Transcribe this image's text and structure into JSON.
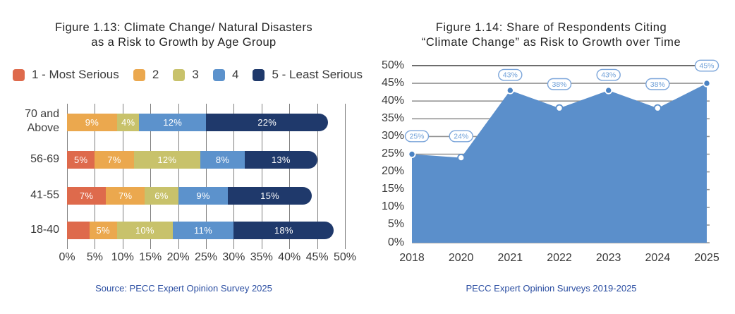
{
  "colors": {
    "serious_1": "#DE6A4C",
    "serious_2": "#EBA84E",
    "serious_3": "#C8C26B",
    "serious_4": "#5C92CC",
    "serious_5": "#1F396B",
    "area_fill": "#5B8FCB",
    "marker_filled": "#4B83C3",
    "marker_open_stroke": "#5B8FCB",
    "bubble_stroke": "#7BA5DA",
    "bubble_text": "#6FA0D8",
    "gridline": "#949494",
    "gridline_dark": "#3D3D3D",
    "footer_blue": "#2B4EA2"
  },
  "left_chart": {
    "title_lines": [
      "Figure 1.13: Climate Change/ Natural Disasters",
      "as a Risk to Growth by Age Group"
    ],
    "legend": [
      {
        "label": "1 - Most Serious",
        "color_key": "serious_1"
      },
      {
        "label": "2",
        "color_key": "serious_2"
      },
      {
        "label": "3",
        "color_key": "serious_3"
      },
      {
        "label": "4",
        "color_key": "serious_4"
      },
      {
        "label": "5 - Least Serious",
        "color_key": "serious_5"
      }
    ],
    "x_ticks": [
      "0%",
      "5%",
      "10%",
      "15%",
      "20%",
      "25%",
      "30%",
      "35%",
      "40%",
      "45%",
      "50%"
    ],
    "x_max": 50,
    "rows": [
      {
        "label_lines": [
          "70 and",
          "Above"
        ],
        "segments": [
          {
            "color_key": "serious_2",
            "value": 9,
            "label": "9%"
          },
          {
            "color_key": "serious_3",
            "value": 4,
            "label": "4%"
          },
          {
            "color_key": "serious_4",
            "value": 12,
            "label": "12%"
          },
          {
            "color_key": "serious_5",
            "value": 22,
            "label": "22%"
          }
        ]
      },
      {
        "label_lines": [
          "56-69"
        ],
        "segments": [
          {
            "color_key": "serious_1",
            "value": 5,
            "label": "5%"
          },
          {
            "color_key": "serious_2",
            "value": 7,
            "label": "7%"
          },
          {
            "color_key": "serious_3",
            "value": 12,
            "label": "12%"
          },
          {
            "color_key": "serious_4",
            "value": 8,
            "label": "8%"
          },
          {
            "color_key": "serious_5",
            "value": 13,
            "label": "13%"
          }
        ]
      },
      {
        "label_lines": [
          "41-55"
        ],
        "segments": [
          {
            "color_key": "serious_1",
            "value": 7,
            "label": "7%"
          },
          {
            "color_key": "serious_2",
            "value": 7,
            "label": "7%"
          },
          {
            "color_key": "serious_3",
            "value": 6,
            "label": "6%"
          },
          {
            "color_key": "serious_4",
            "value": 9,
            "label": "9%"
          },
          {
            "color_key": "serious_5",
            "value": 15,
            "label": "15%"
          }
        ]
      },
      {
        "label_lines": [
          "18-40"
        ],
        "segments": [
          {
            "color_key": "serious_1",
            "value": 4,
            "label": ""
          },
          {
            "color_key": "serious_2",
            "value": 5,
            "label": "5%"
          },
          {
            "color_key": "serious_3",
            "value": 10,
            "label": "10%"
          },
          {
            "color_key": "serious_4",
            "value": 11,
            "label": "11%"
          },
          {
            "color_key": "serious_5",
            "value": 18,
            "label": "18%"
          }
        ]
      }
    ],
    "source": "Source: PECC Expert Opinion Survey 2025"
  },
  "right_chart": {
    "title_lines": [
      "Figure 1.14: Share of Respondents Citing",
      "“Climate Change” as Risk to Growth over Time"
    ],
    "y_ticks": [
      "50%",
      "45%",
      "40%",
      "35%",
      "30%",
      "25%",
      "20%",
      "15%",
      "10%",
      "5%",
      "0%"
    ],
    "y_max": 50,
    "points": [
      {
        "x_label": "2018",
        "value": 25,
        "bubble": "25%",
        "marker": "filled"
      },
      {
        "x_label": "2020",
        "value": 24,
        "bubble": "24%",
        "marker": "open"
      },
      {
        "x_label": "2021",
        "value": 43,
        "bubble": "43%",
        "marker": "filled"
      },
      {
        "x_label": "2022",
        "value": 38,
        "bubble": "38%",
        "marker": "open"
      },
      {
        "x_label": "2023",
        "value": 43,
        "bubble": "43%",
        "marker": "filled"
      },
      {
        "x_label": "2024",
        "value": 38,
        "bubble": "38%",
        "marker": "open"
      },
      {
        "x_label": "2025",
        "value": 45,
        "bubble": "45%",
        "marker": "filled"
      }
    ],
    "footer": "PECC Expert Opinion Surveys 2019-2025"
  },
  "chart_data": [
    {
      "type": "bar",
      "subtype": "horizontal_stacked",
      "title": "Figure 1.13: Climate Change/ Natural Disasters as a Risk to Growth by Age Group",
      "categories": [
        "70 and Above",
        "56-69",
        "41-55",
        "18-40"
      ],
      "series": [
        {
          "name": "1 - Most Serious",
          "values": [
            0,
            5,
            7,
            4
          ]
        },
        {
          "name": "2",
          "values": [
            9,
            7,
            7,
            5
          ]
        },
        {
          "name": "3",
          "values": [
            4,
            12,
            6,
            10
          ]
        },
        {
          "name": "4",
          "values": [
            12,
            8,
            9,
            11
          ]
        },
        {
          "name": "5 - Least Serious",
          "values": [
            22,
            13,
            15,
            18
          ]
        }
      ],
      "unit": "percent",
      "xlim": [
        0,
        50
      ],
      "x_ticks": [
        0,
        5,
        10,
        15,
        20,
        25,
        30,
        35,
        40,
        45,
        50
      ],
      "legend_position": "top",
      "grid": "vertical",
      "source": "Source: PECC Expert Opinion Survey 2025"
    },
    {
      "type": "area",
      "title": "Figure 1.14: Share of Respondents Citing “Climate Change” as Risk to Growth over Time",
      "x": [
        "2018",
        "2020",
        "2021",
        "2022",
        "2023",
        "2024",
        "2025"
      ],
      "values": [
        25,
        24,
        43,
        38,
        43,
        38,
        45
      ],
      "data_labels": [
        "25%",
        "24%",
        "43%",
        "38%",
        "43%",
        "38%",
        "45%"
      ],
      "unit": "percent",
      "ylim": [
        0,
        50
      ],
      "y_ticks": [
        0,
        5,
        10,
        15,
        20,
        25,
        30,
        35,
        40,
        45,
        50
      ],
      "grid": "horizontal",
      "legend_position": "none",
      "footer": "PECC Expert Opinion Surveys 2019-2025"
    }
  ]
}
